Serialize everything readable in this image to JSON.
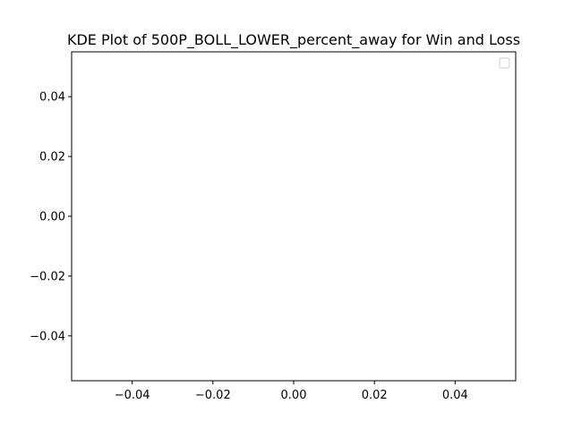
{
  "chart_data": {
    "type": "line",
    "title": "KDE Plot of 500P_BOLL_LOWER_percent_away for Win and Loss",
    "xlabel": "",
    "ylabel": "",
    "xlim": [
      -0.055,
      0.055
    ],
    "ylim": [
      -0.055,
      0.055
    ],
    "x_ticks": [
      -0.04,
      -0.02,
      0.0,
      0.02,
      0.04
    ],
    "x_tick_labels": [
      "−0.04",
      "−0.02",
      "0.00",
      "0.02",
      "0.04"
    ],
    "y_ticks": [
      -0.04,
      -0.02,
      0.0,
      0.02,
      0.04
    ],
    "y_tick_labels": [
      "−0.04",
      "−0.02",
      "0.00",
      "0.02",
      "0.04"
    ],
    "series": [],
    "grid": false,
    "legend": {
      "placement": "top-right",
      "entries": []
    }
  }
}
